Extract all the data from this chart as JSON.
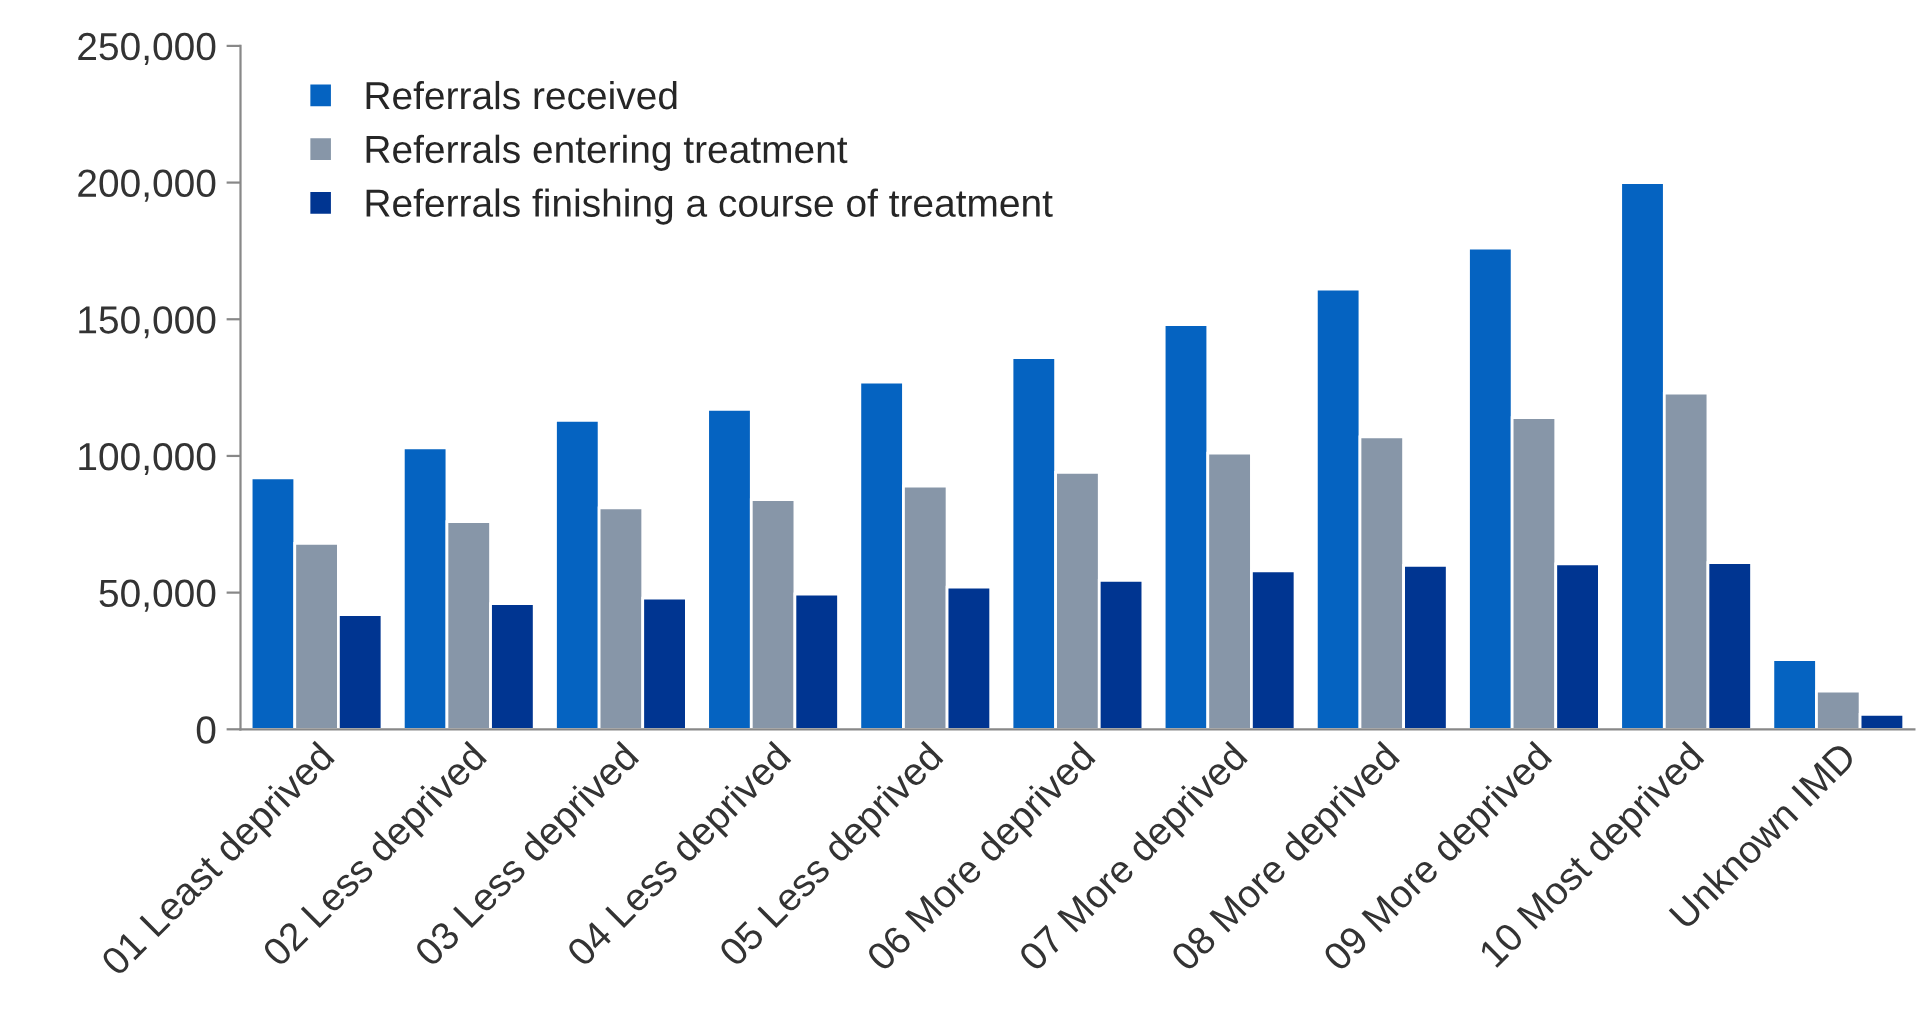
{
  "chart_data": {
    "type": "bar",
    "categories": [
      "01 Least deprived",
      "02 Less deprived",
      "03 Less deprived",
      "04 Less deprived",
      "05 Less deprived",
      "06 More deprived",
      "07 More deprived",
      "08 More deprived",
      "09 More deprived",
      "10 Most deprived",
      "Unknown IMD"
    ],
    "series": [
      {
        "name": "Referrals received",
        "color": "#0563c1",
        "values": [
          92000,
          103000,
          113000,
          117000,
          127000,
          136000,
          148000,
          161000,
          176000,
          200000,
          25500
        ]
      },
      {
        "name": "Referrals entering treatment",
        "color": "#8796a8",
        "values": [
          68000,
          76000,
          81000,
          84000,
          89000,
          94000,
          101000,
          107000,
          114000,
          123000,
          14000
        ]
      },
      {
        "name": "Referrals finishing a course of treatment",
        "color": "#003591",
        "values": [
          42000,
          46000,
          48000,
          49500,
          52000,
          54500,
          58000,
          60000,
          60500,
          61000,
          5500
        ]
      }
    ],
    "ylim": [
      0,
      250000
    ],
    "yticks": [
      {
        "value": 0,
        "label": "0"
      },
      {
        "value": 50000,
        "label": "50,000"
      },
      {
        "value": 100000,
        "label": "100,000"
      },
      {
        "value": 150000,
        "label": "150,000"
      },
      {
        "value": 200000,
        "label": "200,000"
      },
      {
        "value": 250000,
        "label": "250,000"
      }
    ],
    "grid": false,
    "legend": "top left"
  }
}
